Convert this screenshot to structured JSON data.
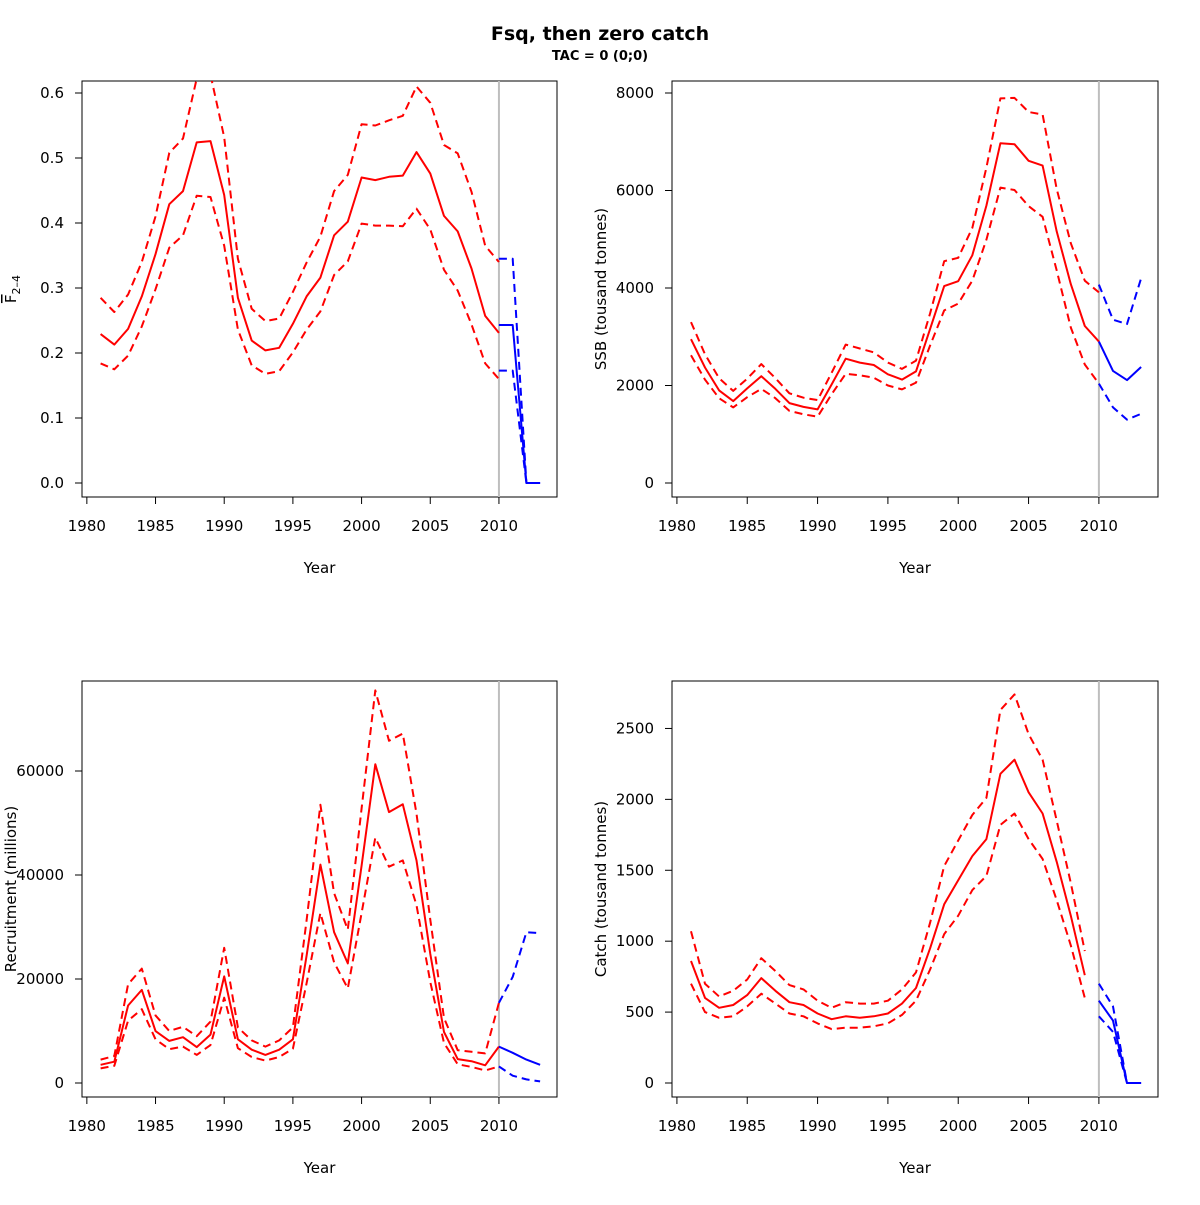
{
  "title": "Fsq, then zero catch",
  "subtitle": "TAC = 0 (0;0)",
  "colors": {
    "historical": "#ff0000",
    "forecast": "#0000ff",
    "ref_line": "#bebebe",
    "frame": "#000000"
  },
  "chart_data": [
    {
      "type": "line",
      "xlabel": "Year",
      "ylabel_main": "F",
      "ylabel_sub": "2–4",
      "ylabel_overline": true,
      "xlim": [
        1980,
        2013
      ],
      "ylim": [
        0,
        0.6
      ],
      "x_ticks": [
        1980,
        1985,
        1990,
        1995,
        2000,
        2005,
        2010
      ],
      "y_ticks": [
        0.0,
        0.1,
        0.2,
        0.3,
        0.4,
        0.5,
        0.6
      ],
      "y_tick_labels": [
        "0.0",
        "0.1",
        "0.2",
        "0.3",
        "0.4",
        "0.5",
        "0.6"
      ],
      "ref_year": 2010,
      "historical": {
        "x": [
          1981,
          1982,
          1983,
          1984,
          1985,
          1986,
          1987,
          1988,
          1989,
          1990,
          1991,
          1992,
          1993,
          1994,
          1995,
          1996,
          1997,
          1998,
          1999,
          2000,
          2001,
          2002,
          2003,
          2004,
          2005,
          2006,
          2007,
          2008,
          2009,
          2010
        ],
        "estimate": [
          0.229,
          0.213,
          0.237,
          0.287,
          0.352,
          0.429,
          0.449,
          0.524,
          0.526,
          0.443,
          0.285,
          0.219,
          0.204,
          0.208,
          0.245,
          0.287,
          0.316,
          0.381,
          0.402,
          0.47,
          0.466,
          0.471,
          0.473,
          0.509,
          0.476,
          0.411,
          0.387,
          0.33,
          0.257,
          0.231
        ],
        "upper": [
          0.285,
          0.263,
          0.29,
          0.34,
          0.41,
          0.508,
          0.53,
          0.622,
          0.628,
          0.532,
          0.345,
          0.268,
          0.249,
          0.253,
          0.294,
          0.339,
          0.379,
          0.449,
          0.474,
          0.552,
          0.55,
          0.558,
          0.565,
          0.61,
          0.585,
          0.52,
          0.507,
          0.448,
          0.365,
          0.34
        ],
        "lower": [
          0.184,
          0.175,
          0.196,
          0.241,
          0.298,
          0.362,
          0.381,
          0.442,
          0.44,
          0.365,
          0.236,
          0.181,
          0.168,
          0.172,
          0.201,
          0.236,
          0.264,
          0.32,
          0.341,
          0.399,
          0.396,
          0.396,
          0.395,
          0.422,
          0.39,
          0.328,
          0.296,
          0.244,
          0.184,
          0.16
        ]
      },
      "forecast": {
        "x": [
          2010,
          2011,
          2012,
          2013
        ],
        "estimate": [
          0.243,
          0.243,
          0.0,
          0.0
        ],
        "upper": [
          0.345,
          0.345,
          0.0,
          0.0
        ],
        "lower": [
          0.173,
          0.173,
          0.0,
          0.0
        ]
      }
    },
    {
      "type": "line",
      "xlabel": "Year",
      "ylabel_main": "SSB (tousand tonnes)",
      "xlim": [
        1980,
        2013
      ],
      "ylim": [
        0,
        8000
      ],
      "x_ticks": [
        1980,
        1985,
        1990,
        1995,
        2000,
        2005,
        2010
      ],
      "y_ticks": [
        0,
        2000,
        4000,
        6000,
        8000
      ],
      "y_tick_labels": [
        "0",
        "2000",
        "4000",
        "6000",
        "8000"
      ],
      "ref_year": 2010,
      "historical": {
        "x": [
          1981,
          1982,
          1983,
          1984,
          1985,
          1986,
          1987,
          1988,
          1989,
          1990,
          1991,
          1992,
          1993,
          1994,
          1995,
          1996,
          1997,
          1998,
          1999,
          2000,
          2001,
          2002,
          2003,
          2004,
          2005,
          2006,
          2007,
          2008,
          2009,
          2010
        ],
        "estimate": [
          2950,
          2370,
          1900,
          1680,
          1940,
          2190,
          1930,
          1640,
          1560,
          1510,
          2020,
          2550,
          2470,
          2420,
          2230,
          2120,
          2290,
          3160,
          4040,
          4140,
          4670,
          5690,
          6970,
          6950,
          6610,
          6510,
          5160,
          4080,
          3220,
          2900
        ],
        "upper": [
          3300,
          2640,
          2150,
          1890,
          2140,
          2440,
          2150,
          1840,
          1750,
          1700,
          2260,
          2840,
          2760,
          2680,
          2470,
          2340,
          2510,
          3480,
          4550,
          4620,
          5230,
          6470,
          7890,
          7900,
          7610,
          7560,
          6030,
          4920,
          4150,
          3910
        ],
        "lower": [
          2620,
          2120,
          1740,
          1550,
          1760,
          1930,
          1740,
          1480,
          1410,
          1360,
          1820,
          2240,
          2210,
          2160,
          2000,
          1920,
          2060,
          2820,
          3540,
          3680,
          4150,
          4990,
          6060,
          6010,
          5680,
          5460,
          4360,
          3190,
          2430,
          2040
        ]
      },
      "forecast": {
        "x": [
          2010,
          2011,
          2012,
          2013
        ],
        "estimate": [
          2900,
          2300,
          2110,
          2380
        ],
        "upper": [
          4070,
          3350,
          3260,
          4200
        ],
        "lower": [
          2040,
          1550,
          1300,
          1420
        ]
      }
    },
    {
      "type": "line",
      "xlabel": "Year",
      "ylabel_main": "Recruitment (millions)",
      "xlim": [
        1980,
        2013
      ],
      "ylim": [
        0,
        75000
      ],
      "x_ticks": [
        1980,
        1985,
        1990,
        1995,
        2000,
        2005,
        2010
      ],
      "y_ticks": [
        0,
        20000,
        40000,
        60000
      ],
      "y_tick_labels": [
        "0",
        "20000",
        "40000",
        "60000"
      ],
      "ref_year": 2010,
      "historical": {
        "x": [
          1981,
          1982,
          1983,
          1984,
          1985,
          1986,
          1987,
          1988,
          1989,
          1990,
          1991,
          1992,
          1993,
          1994,
          1995,
          1996,
          1997,
          1998,
          1999,
          2000,
          2001,
          2002,
          2003,
          2004,
          2005,
          2006,
          2007,
          2008,
          2009,
          2010
        ],
        "estimate": [
          3500,
          4100,
          14900,
          17900,
          10000,
          8100,
          8800,
          6900,
          9300,
          20500,
          8400,
          6400,
          5400,
          6400,
          8400,
          24500,
          42000,
          29000,
          23000,
          41800,
          61300,
          52100,
          53600,
          42800,
          24800,
          9800,
          4600,
          4200,
          3400,
          7000
        ],
        "upper": [
          4500,
          5200,
          19000,
          22000,
          13000,
          10000,
          10800,
          9000,
          11800,
          26000,
          10700,
          8200,
          7000,
          8200,
          10700,
          31300,
          53500,
          36500,
          29500,
          52800,
          75500,
          65800,
          67200,
          51800,
          31400,
          12500,
          6300,
          6000,
          5700,
          15400
        ],
        "lower": [
          2800,
          3300,
          12000,
          14200,
          8400,
          6500,
          7000,
          5400,
          7300,
          16400,
          6700,
          5000,
          4300,
          5000,
          6600,
          19200,
          32700,
          23200,
          18200,
          32700,
          47200,
          41600,
          42800,
          34200,
          19400,
          7700,
          3600,
          3100,
          2400,
          3200
        ]
      },
      "forecast": {
        "x": [
          2010,
          2011,
          2012,
          2013
        ],
        "estimate": [
          7000,
          5800,
          4500,
          3500
        ],
        "upper": [
          15400,
          20400,
          29000,
          28800
        ],
        "lower": [
          3200,
          1400,
          700,
          300
        ]
      }
    },
    {
      "type": "line",
      "xlabel": "Year",
      "ylabel_main": "Catch (tousand tonnes)",
      "xlim": [
        1980,
        2013
      ],
      "ylim": [
        0,
        2750
      ],
      "x_ticks": [
        1980,
        1985,
        1990,
        1995,
        2000,
        2005,
        2010
      ],
      "y_ticks": [
        0,
        500,
        1000,
        1500,
        2000,
        2500
      ],
      "y_tick_labels": [
        "0",
        "500",
        "1000",
        "1500",
        "2000",
        "2500"
      ],
      "ref_year": 2010,
      "historical": {
        "x": [
          1981,
          1982,
          1983,
          1984,
          1985,
          1986,
          1987,
          1988,
          1989,
          1990,
          1991,
          1992,
          1993,
          1994,
          1995,
          1996,
          1997,
          1998,
          1999,
          2000,
          2001,
          2002,
          2003,
          2004,
          2005,
          2006,
          2007,
          2008,
          2009
        ],
        "estimate": [
          860,
          600,
          530,
          550,
          620,
          740,
          650,
          570,
          550,
          490,
          450,
          470,
          460,
          470,
          490,
          560,
          670,
          950,
          1260,
          1430,
          1600,
          1720,
          2180,
          2280,
          2050,
          1900,
          1560,
          1180,
          760
        ],
        "upper": [
          1070,
          700,
          610,
          650,
          730,
          880,
          790,
          690,
          660,
          580,
          530,
          570,
          560,
          560,
          580,
          660,
          780,
          1130,
          1530,
          1710,
          1890,
          2010,
          2630,
          2740,
          2460,
          2280,
          1850,
          1410,
          930
        ],
        "lower": [
          700,
          500,
          460,
          470,
          540,
          630,
          560,
          490,
          470,
          420,
          380,
          390,
          390,
          400,
          420,
          480,
          580,
          800,
          1050,
          1180,
          1360,
          1460,
          1820,
          1900,
          1720,
          1580,
          1290,
          970,
          600
        ]
      },
      "forecast": {
        "x": [
          2010,
          2011,
          2012,
          2013
        ],
        "estimate": [
          580,
          440,
          0,
          0
        ],
        "upper": [
          700,
          540,
          0,
          0
        ],
        "lower": [
          470,
          360,
          0,
          0
        ]
      }
    }
  ]
}
